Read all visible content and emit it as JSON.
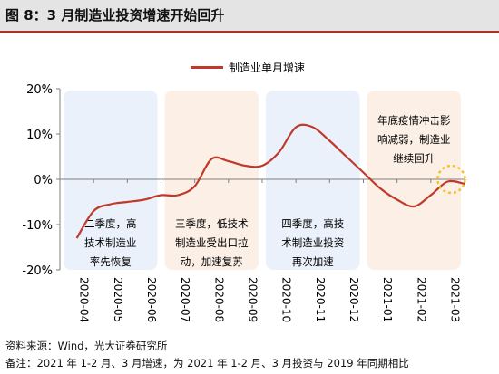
{
  "header": {
    "figure_title": "图 8：3 月制造业投资增速开始回升"
  },
  "chart_data": {
    "type": "line",
    "title": "",
    "xlabel": "",
    "ylabel": "",
    "categories": [
      "2020-04",
      "2020-05",
      "2020-06",
      "2020-07",
      "2020-08",
      "2020-09",
      "2020-10",
      "2020-11",
      "2020-12",
      "2021-01",
      "2021-02",
      "2021-03"
    ],
    "x": [
      0,
      0.5,
      1,
      1.5,
      2,
      2.5,
      3,
      3.5,
      4,
      4.5,
      5,
      5.5,
      6,
      6.5,
      7,
      7.5,
      8,
      8.5,
      9,
      9.5,
      10,
      10.5,
      11,
      11.5
    ],
    "series": [
      {
        "name": "制造业单月增速",
        "color": "#c0392b",
        "values": [
          -13.0,
          -7.0,
          -5.5,
          -5.0,
          -4.5,
          -3.5,
          -3.5,
          -1.5,
          4.5,
          4.0,
          3.0,
          3.0,
          6.0,
          11.5,
          11.5,
          8.5,
          5.0,
          1.5,
          -2.0,
          -4.5,
          -6.0,
          -3.5,
          -0.5,
          -1.0
        ]
      }
    ],
    "ylim": [
      -20,
      20
    ],
    "yticks": [
      -20,
      -10,
      0,
      10,
      20
    ],
    "ytick_labels": [
      "-20%",
      "-10%",
      "0%",
      "10%",
      "20%"
    ],
    "grid": false,
    "legend_position": "top",
    "highlight": {
      "x": 11,
      "y": 0,
      "color": "#f2c230"
    },
    "annotations": [
      {
        "text_lines": [
          "二季度，高",
          "技术制造业",
          "率先恢复"
        ],
        "range": [
          0,
          2
        ],
        "fill": "#eaf1fa"
      },
      {
        "text_lines": [
          "三季度，低技术",
          "制造业受出口拉",
          "动，加速复苏"
        ],
        "range": [
          3,
          5
        ],
        "fill": "#fcefe6"
      },
      {
        "text_lines": [
          "四季度，高技",
          "术制造业投资",
          "再次加速"
        ],
        "range": [
          6,
          8
        ],
        "fill": "#eaf1fa"
      },
      {
        "text_lines": [
          "年底疫情冲击影",
          "响减弱，制造业",
          "继续回升"
        ],
        "range": [
          9,
          11
        ],
        "fill": "#fcefe6"
      }
    ]
  },
  "footer": {
    "source": "资料来源：Wind，光大证券研究所",
    "note": "备注：2021 年 1-2 月、3 月增速，为 2021 年 1-2 月、3 月投资与 2019 年同期相比"
  }
}
